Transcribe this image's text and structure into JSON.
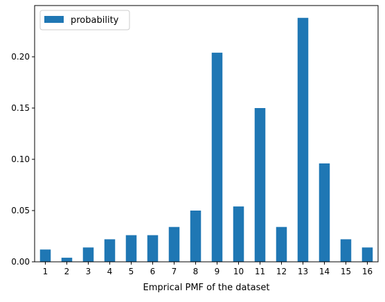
{
  "chart_data": {
    "type": "bar",
    "categories": [
      "1",
      "2",
      "3",
      "4",
      "5",
      "6",
      "7",
      "8",
      "9",
      "10",
      "11",
      "12",
      "13",
      "14",
      "15",
      "16"
    ],
    "series": [
      {
        "name": "probability",
        "values": [
          0.012,
          0.004,
          0.014,
          0.022,
          0.026,
          0.026,
          0.034,
          0.05,
          0.204,
          0.054,
          0.15,
          0.034,
          0.238,
          0.096,
          0.022,
          0.014
        ],
        "color": "#1f77b4"
      }
    ],
    "title": "",
    "xlabel": "Emprical PMF of the dataset",
    "ylabel": "",
    "ylim": [
      0,
      0.25
    ],
    "yticks": [
      "0.00",
      "0.05",
      "0.10",
      "0.15",
      "0.20"
    ],
    "grid": false,
    "legend_position": "top-left"
  }
}
